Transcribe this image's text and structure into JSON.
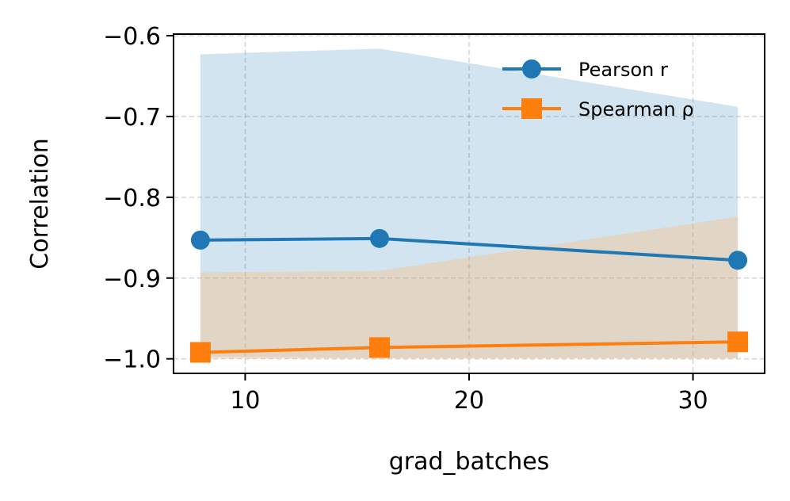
{
  "chart_data": {
    "type": "line",
    "xlabel": "grad_batches",
    "ylabel": "Correlation",
    "x": [
      8,
      16,
      32
    ],
    "xlim": [
      6.8,
      33.2
    ],
    "ylim": [
      -1.018,
      -0.598
    ],
    "xticks": [
      10,
      20,
      30
    ],
    "yticks": [
      -0.6,
      -0.7,
      -0.8,
      -0.9,
      -1.0
    ],
    "xtick_labels": [
      "10",
      "20",
      "30"
    ],
    "ytick_labels": [
      "−0.6",
      "−0.7",
      "−0.8",
      "−0.9",
      "−1.0"
    ],
    "grid": true,
    "legend_position": "top-right",
    "series": [
      {
        "name": "Pearson r",
        "marker": "circle",
        "color": "#1f77b4",
        "fill_color": "#1f77b4",
        "values": [
          -0.853,
          -0.851,
          -0.878
        ],
        "band_lower": [
          -0.998,
          -0.999,
          -0.999
        ],
        "band_upper": [
          -0.623,
          -0.616,
          -0.688
        ]
      },
      {
        "name": "Spearman ρ",
        "marker": "square",
        "color": "#ff7f0e",
        "fill_color": "#ffbb78",
        "values": [
          -0.992,
          -0.986,
          -0.979
        ],
        "band_lower": [
          -1.0,
          -1.0,
          -1.0
        ],
        "band_upper": [
          -0.893,
          -0.891,
          -0.824
        ]
      }
    ]
  }
}
